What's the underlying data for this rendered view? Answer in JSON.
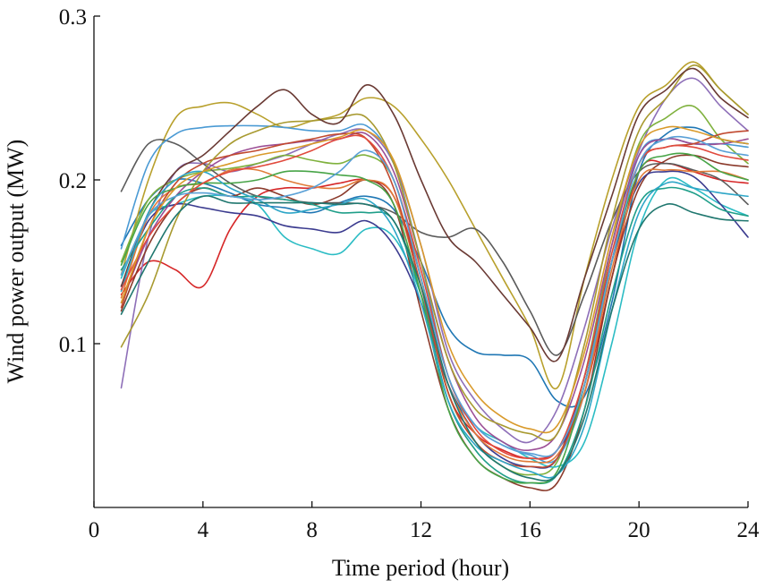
{
  "chart_data": {
    "type": "line",
    "title": "",
    "xlabel": "Time period (hour)",
    "ylabel": "Wind power output (MW)",
    "xlim": [
      0,
      24
    ],
    "ylim": [
      0,
      0.3
    ],
    "xticks": [
      0,
      4,
      8,
      12,
      16,
      20,
      24
    ],
    "yticks": [
      0.1,
      0.2,
      0.3
    ],
    "xtick_labels": [
      "0",
      "4",
      "8",
      "12",
      "16",
      "20",
      "24"
    ],
    "ytick_labels": [
      "0.1",
      "0.2",
      "0.3"
    ],
    "grid": false,
    "legend": "none",
    "x": [
      1,
      2,
      3,
      4,
      5,
      6,
      7,
      8,
      9,
      10,
      11,
      12,
      13,
      14,
      15,
      16,
      17,
      18,
      19,
      20,
      21,
      22,
      23,
      24
    ],
    "series": [
      {
        "color": "#1f77b4",
        "values": [
          0.16,
          0.188,
          0.2,
          0.198,
          0.192,
          0.185,
          0.183,
          0.18,
          0.186,
          0.19,
          0.182,
          0.15,
          0.11,
          0.095,
          0.093,
          0.09,
          0.065,
          0.068,
          0.125,
          0.205,
          0.228,
          0.232,
          0.225,
          0.222
        ]
      },
      {
        "color": "#d62728",
        "values": [
          0.13,
          0.15,
          0.145,
          0.135,
          0.17,
          0.19,
          0.195,
          0.195,
          0.198,
          0.2,
          0.19,
          0.14,
          0.07,
          0.045,
          0.035,
          0.03,
          0.035,
          0.07,
          0.14,
          0.205,
          0.21,
          0.205,
          0.2,
          0.198
        ]
      },
      {
        "color": "#b8a02c",
        "values": [
          0.142,
          0.2,
          0.238,
          0.245,
          0.247,
          0.24,
          0.232,
          0.236,
          0.24,
          0.25,
          0.245,
          0.225,
          0.2,
          0.17,
          0.14,
          0.11,
          0.073,
          0.14,
          0.2,
          0.245,
          0.258,
          0.272,
          0.255,
          0.24
        ]
      },
      {
        "color": "#8e6fb8",
        "values": [
          0.073,
          0.165,
          0.205,
          0.21,
          0.205,
          0.21,
          0.215,
          0.222,
          0.228,
          0.23,
          0.21,
          0.16,
          0.095,
          0.065,
          0.048,
          0.04,
          0.06,
          0.11,
          0.17,
          0.218,
          0.25,
          0.262,
          0.245,
          0.23
        ]
      },
      {
        "color": "#7fb13d",
        "values": [
          0.15,
          0.188,
          0.2,
          0.205,
          0.207,
          0.21,
          0.215,
          0.212,
          0.21,
          0.215,
          0.2,
          0.14,
          0.07,
          0.04,
          0.025,
          0.02,
          0.028,
          0.08,
          0.16,
          0.222,
          0.238,
          0.245,
          0.225,
          0.21
        ]
      },
      {
        "color": "#2bbcc4",
        "values": [
          0.14,
          0.178,
          0.185,
          0.19,
          0.19,
          0.185,
          0.165,
          0.158,
          0.155,
          0.17,
          0.165,
          0.13,
          0.075,
          0.05,
          0.04,
          0.03,
          0.025,
          0.04,
          0.1,
          0.17,
          0.2,
          0.195,
          0.185,
          0.178
        ]
      },
      {
        "color": "#8b3a2b",
        "values": [
          0.12,
          0.16,
          0.185,
          0.195,
          0.19,
          0.195,
          0.19,
          0.185,
          0.19,
          0.2,
          0.185,
          0.12,
          0.06,
          0.03,
          0.018,
          0.012,
          0.015,
          0.06,
          0.14,
          0.195,
          0.212,
          0.215,
          0.21,
          0.208
        ]
      },
      {
        "color": "#3b3b8f",
        "values": [
          0.135,
          0.175,
          0.185,
          0.183,
          0.18,
          0.178,
          0.172,
          0.17,
          0.168,
          0.175,
          0.16,
          0.125,
          0.075,
          0.045,
          0.03,
          0.025,
          0.03,
          0.08,
          0.15,
          0.198,
          0.205,
          0.202,
          0.185,
          0.165
        ]
      },
      {
        "color": "#5b5b5b",
        "values": [
          0.193,
          0.222,
          0.222,
          0.21,
          0.198,
          0.19,
          0.188,
          0.186,
          0.186,
          0.185,
          0.18,
          0.168,
          0.165,
          0.17,
          0.15,
          0.12,
          0.093,
          0.13,
          0.175,
          0.205,
          0.21,
          0.206,
          0.2,
          0.185
        ]
      },
      {
        "color": "#4a9ad4",
        "values": [
          0.158,
          0.21,
          0.228,
          0.232,
          0.233,
          0.233,
          0.232,
          0.23,
          0.23,
          0.233,
          0.21,
          0.15,
          0.08,
          0.05,
          0.038,
          0.032,
          0.03,
          0.07,
          0.15,
          0.215,
          0.225,
          0.222,
          0.222,
          0.22
        ]
      },
      {
        "color": "#e07b39",
        "values": [
          0.128,
          0.178,
          0.195,
          0.198,
          0.206,
          0.206,
          0.2,
          0.196,
          0.195,
          0.2,
          0.19,
          0.135,
          0.075,
          0.045,
          0.032,
          0.028,
          0.032,
          0.07,
          0.145,
          0.2,
          0.206,
          0.205,
          0.205,
          0.2
        ]
      },
      {
        "color": "#9c4f96",
        "values": [
          0.125,
          0.165,
          0.19,
          0.205,
          0.215,
          0.22,
          0.222,
          0.224,
          0.225,
          0.228,
          0.205,
          0.15,
          0.09,
          0.055,
          0.04,
          0.035,
          0.045,
          0.09,
          0.16,
          0.215,
          0.225,
          0.222,
          0.222,
          0.225
        ]
      },
      {
        "color": "#1f9e89",
        "values": [
          0.145,
          0.17,
          0.19,
          0.195,
          0.19,
          0.19,
          0.188,
          0.185,
          0.18,
          0.18,
          0.175,
          0.13,
          0.065,
          0.035,
          0.02,
          0.015,
          0.02,
          0.06,
          0.13,
          0.185,
          0.195,
          0.192,
          0.182,
          0.178
        ]
      },
      {
        "color": "#c1492f",
        "values": [
          0.122,
          0.17,
          0.198,
          0.21,
          0.215,
          0.218,
          0.222,
          0.225,
          0.228,
          0.225,
          0.195,
          0.135,
          0.07,
          0.04,
          0.028,
          0.025,
          0.03,
          0.075,
          0.15,
          0.21,
          0.22,
          0.222,
          0.228,
          0.23
        ]
      },
      {
        "color": "#a89a30",
        "values": [
          0.098,
          0.13,
          0.175,
          0.205,
          0.222,
          0.23,
          0.235,
          0.236,
          0.238,
          0.238,
          0.21,
          0.15,
          0.09,
          0.06,
          0.05,
          0.045,
          0.045,
          0.1,
          0.175,
          0.23,
          0.25,
          0.27,
          0.255,
          0.24
        ]
      },
      {
        "color": "#6a3a34",
        "values": [
          0.135,
          0.18,
          0.205,
          0.215,
          0.23,
          0.245,
          0.255,
          0.24,
          0.235,
          0.258,
          0.24,
          0.2,
          0.165,
          0.15,
          0.13,
          0.11,
          0.09,
          0.14,
          0.19,
          0.24,
          0.255,
          0.268,
          0.25,
          0.238
        ]
      },
      {
        "color": "#47a447",
        "values": [
          0.148,
          0.185,
          0.195,
          0.198,
          0.198,
          0.2,
          0.205,
          0.205,
          0.203,
          0.2,
          0.185,
          0.13,
          0.06,
          0.03,
          0.018,
          0.015,
          0.022,
          0.075,
          0.15,
          0.205,
          0.215,
          0.215,
          0.205,
          0.2
        ]
      },
      {
        "color": "#2ea6c7",
        "values": [
          0.132,
          0.18,
          0.2,
          0.205,
          0.195,
          0.188,
          0.18,
          0.182,
          0.185,
          0.188,
          0.17,
          0.125,
          0.065,
          0.038,
          0.028,
          0.022,
          0.02,
          0.05,
          0.12,
          0.18,
          0.198,
          0.195,
          0.192,
          0.19
        ]
      },
      {
        "color": "#20776f",
        "values": [
          0.118,
          0.15,
          0.178,
          0.19,
          0.186,
          0.186,
          0.186,
          0.186,
          0.185,
          0.185,
          0.175,
          0.135,
          0.075,
          0.04,
          0.025,
          0.018,
          0.02,
          0.055,
          0.12,
          0.17,
          0.185,
          0.18,
          0.176,
          0.175
        ]
      },
      {
        "color": "#e14a3d",
        "values": [
          0.133,
          0.165,
          0.185,
          0.198,
          0.205,
          0.208,
          0.212,
          0.218,
          0.225,
          0.225,
          0.2,
          0.145,
          0.08,
          0.048,
          0.034,
          0.03,
          0.035,
          0.08,
          0.155,
          0.21,
          0.22,
          0.22,
          0.215,
          0.212
        ]
      },
      {
        "color": "#5aa0d6",
        "values": [
          0.142,
          0.178,
          0.19,
          0.192,
          0.19,
          0.188,
          0.19,
          0.195,
          0.205,
          0.218,
          0.2,
          0.14,
          0.08,
          0.05,
          0.038,
          0.033,
          0.035,
          0.075,
          0.15,
          0.21,
          0.225,
          0.225,
          0.218,
          0.215
        ]
      },
      {
        "color": "#d99a2b",
        "values": [
          0.125,
          0.17,
          0.195,
          0.205,
          0.21,
          0.215,
          0.218,
          0.222,
          0.226,
          0.23,
          0.212,
          0.16,
          0.1,
          0.07,
          0.055,
          0.048,
          0.05,
          0.095,
          0.165,
          0.22,
          0.232,
          0.23,
          0.225,
          0.222
        ]
      }
    ]
  }
}
